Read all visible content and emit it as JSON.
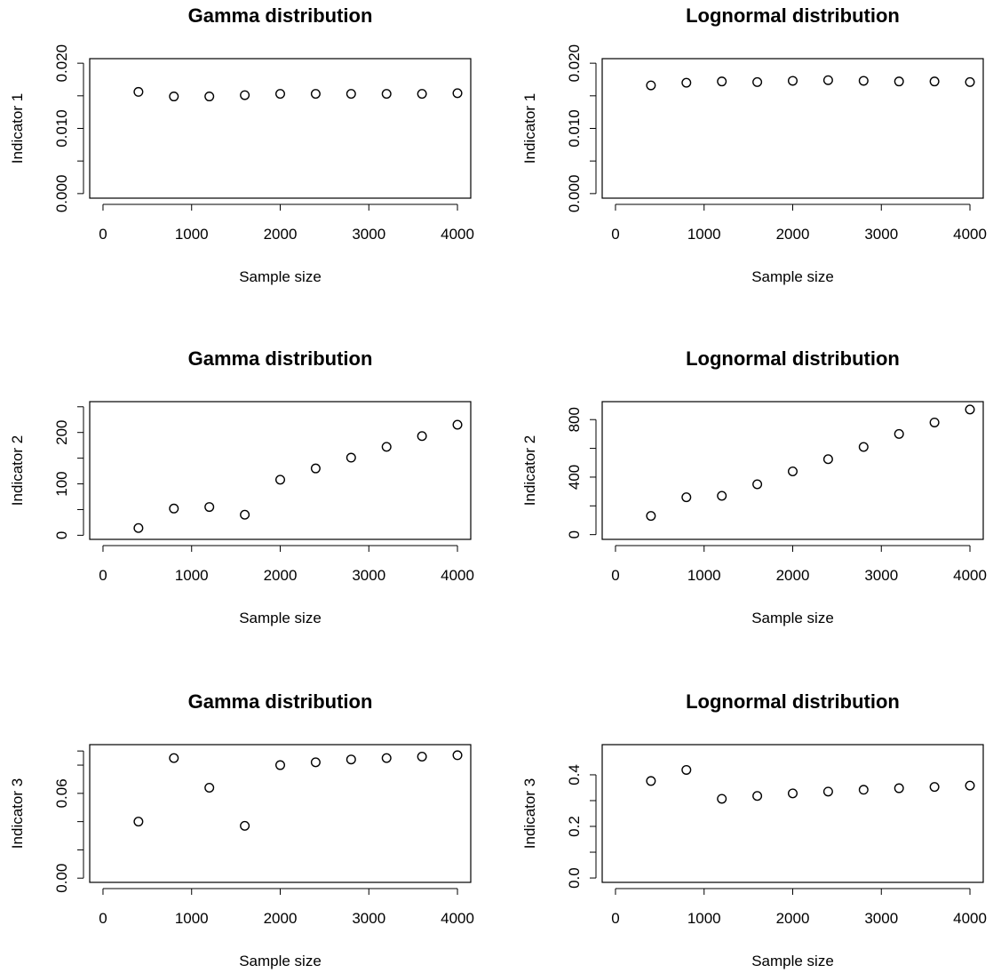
{
  "chart_data": [
    {
      "type": "scatter",
      "title": "Gamma distribution",
      "xlabel": "Sample size",
      "ylabel": "Indicator 1",
      "x": [
        400,
        800,
        1200,
        1600,
        2000,
        2400,
        2800,
        3200,
        3600,
        4000
      ],
      "y": [
        0.0156,
        0.0149,
        0.0149,
        0.0151,
        0.0153,
        0.0153,
        0.0153,
        0.0153,
        0.0153,
        0.0154
      ],
      "xlim": [
        -150,
        4150
      ],
      "ylim": [
        -0.0007,
        0.0207
      ],
      "xticks": [
        0,
        1000,
        2000,
        3000,
        4000
      ],
      "xtick_labels": [
        "0",
        "1000",
        "2000",
        "3000",
        "4000"
      ],
      "yticks": [
        0,
        0.005,
        0.01,
        0.015,
        0.02
      ],
      "ytick_labels": [
        "0.000",
        "",
        "0.010",
        "",
        "0.020"
      ],
      "grid": false,
      "marker": "open-circle"
    },
    {
      "type": "scatter",
      "title": "Lognormal distribution",
      "xlabel": "Sample size",
      "ylabel": "Indicator 1",
      "x": [
        400,
        800,
        1200,
        1600,
        2000,
        2400,
        2800,
        3200,
        3600,
        4000
      ],
      "y": [
        0.0166,
        0.017,
        0.0172,
        0.0171,
        0.0173,
        0.0174,
        0.0173,
        0.0172,
        0.0172,
        0.0171
      ],
      "xlim": [
        -150,
        4150
      ],
      "ylim": [
        -0.0007,
        0.0207
      ],
      "xticks": [
        0,
        1000,
        2000,
        3000,
        4000
      ],
      "xtick_labels": [
        "0",
        "1000",
        "2000",
        "3000",
        "4000"
      ],
      "yticks": [
        0,
        0.005,
        0.01,
        0.015,
        0.02
      ],
      "ytick_labels": [
        "0.000",
        "",
        "0.010",
        "",
        "0.020"
      ],
      "grid": false,
      "marker": "open-circle"
    },
    {
      "type": "scatter",
      "title": "Gamma distribution",
      "xlabel": "Sample size",
      "ylabel": "Indicator 2",
      "x": [
        400,
        800,
        1200,
        1600,
        2000,
        2400,
        2800,
        3200,
        3600,
        4000
      ],
      "y": [
        14,
        52,
        55,
        40,
        108,
        130,
        151,
        172,
        193,
        215
      ],
      "xlim": [
        -150,
        4150
      ],
      "ylim": [
        -8,
        260
      ],
      "xticks": [
        0,
        1000,
        2000,
        3000,
        4000
      ],
      "xtick_labels": [
        "0",
        "1000",
        "2000",
        "3000",
        "4000"
      ],
      "yticks": [
        0,
        50,
        100,
        150,
        200,
        250
      ],
      "ytick_labels": [
        "0",
        "",
        "100",
        "",
        "200",
        ""
      ],
      "grid": false,
      "marker": "open-circle"
    },
    {
      "type": "scatter",
      "title": "Lognormal distribution",
      "xlabel": "Sample size",
      "ylabel": "Indicator 2",
      "x": [
        400,
        800,
        1200,
        1600,
        2000,
        2400,
        2800,
        3200,
        3600,
        4000
      ],
      "y": [
        130,
        260,
        270,
        350,
        440,
        525,
        610,
        700,
        780,
        870
      ],
      "xlim": [
        -150,
        4150
      ],
      "ylim": [
        -33,
        925
      ],
      "xticks": [
        0,
        1000,
        2000,
        3000,
        4000
      ],
      "xtick_labels": [
        "0",
        "1000",
        "2000",
        "3000",
        "4000"
      ],
      "yticks": [
        0,
        200,
        400,
        600,
        800
      ],
      "ytick_labels": [
        "0",
        "",
        "400",
        "",
        "800"
      ],
      "grid": false,
      "marker": "open-circle"
    },
    {
      "type": "scatter",
      "title": "Gamma distribution",
      "xlabel": "Sample size",
      "ylabel": "Indicator 3",
      "x": [
        400,
        800,
        1200,
        1600,
        2000,
        2400,
        2800,
        3200,
        3600,
        4000
      ],
      "y": [
        0.04,
        0.085,
        0.064,
        0.037,
        0.08,
        0.082,
        0.084,
        0.085,
        0.086,
        0.087
      ],
      "xlim": [
        -150,
        4150
      ],
      "ylim": [
        -0.003,
        0.0945
      ],
      "xticks": [
        0,
        1000,
        2000,
        3000,
        4000
      ],
      "xtick_labels": [
        "0",
        "1000",
        "2000",
        "3000",
        "4000"
      ],
      "yticks": [
        0,
        0.02,
        0.04,
        0.06,
        0.08,
        0.09
      ],
      "ytick_labels": [
        "0.00",
        "",
        "",
        "0.06",
        "",
        ""
      ],
      "grid": false,
      "marker": "open-circle"
    },
    {
      "type": "scatter",
      "title": "Lognormal distribution",
      "xlabel": "Sample size",
      "ylabel": "Indicator 3",
      "x": [
        400,
        800,
        1200,
        1600,
        2000,
        2400,
        2800,
        3200,
        3600,
        4000
      ],
      "y": [
        0.376,
        0.419,
        0.307,
        0.318,
        0.328,
        0.335,
        0.342,
        0.348,
        0.353,
        0.358
      ],
      "xlim": [
        -150,
        4150
      ],
      "ylim": [
        -0.017,
        0.517
      ],
      "xticks": [
        0,
        1000,
        2000,
        3000,
        4000
      ],
      "xtick_labels": [
        "0",
        "1000",
        "2000",
        "3000",
        "4000"
      ],
      "yticks": [
        0,
        0.1,
        0.2,
        0.3,
        0.4
      ],
      "ytick_labels": [
        "0.0",
        "",
        "0.2",
        "",
        "0.4"
      ],
      "grid": false,
      "marker": "open-circle"
    }
  ]
}
